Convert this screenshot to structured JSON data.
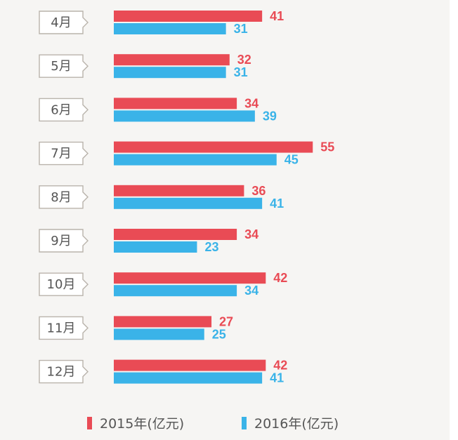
{
  "chart_data": {
    "type": "bar",
    "orientation": "horizontal",
    "categories": [
      "4月",
      "5月",
      "6月",
      "7月",
      "8月",
      "9月",
      "10月",
      "11月",
      "12月"
    ],
    "series": [
      {
        "name": "2015年(亿元)",
        "color": "#e94b55",
        "values": [
          41,
          32,
          34,
          55,
          36,
          34,
          42,
          27,
          42
        ]
      },
      {
        "name": "2016年(亿元)",
        "color": "#3ab3e8",
        "values": [
          31,
          31,
          39,
          45,
          41,
          23,
          34,
          25,
          41
        ]
      }
    ],
    "legend_position": "bottom",
    "grid": false
  }
}
